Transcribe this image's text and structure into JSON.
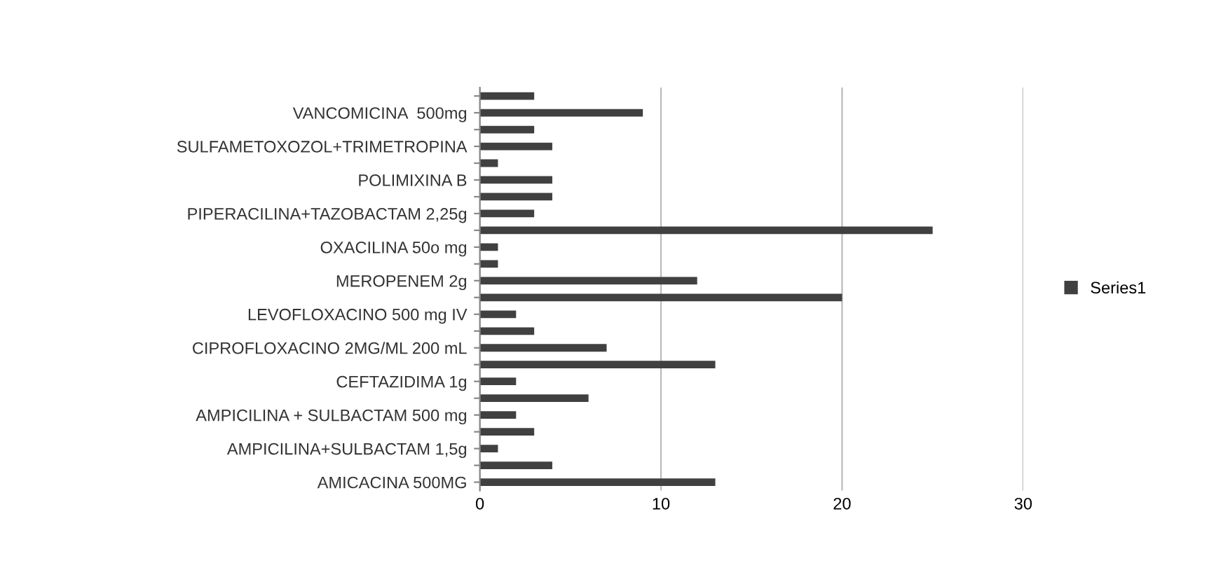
{
  "chart_data": {
    "type": "bar",
    "orientation": "horizontal",
    "categories": [
      null,
      "VANCOMICINA  500mg",
      null,
      "SULFAMETOXOZOL+TRIMETROPINA",
      null,
      "POLIMIXINA B",
      null,
      "PIPERACILINA+TAZOBACTAM 2,25g",
      null,
      "OXACILINA 50o mg",
      null,
      "MEROPENEM 2g",
      null,
      "LEVOFLOXACINO 500 mg IV",
      null,
      "CIPROFLOXACINO 2MG/ML 200 mL",
      null,
      "CEFTAZIDIMA 1g",
      null,
      "AMPICILINA + SULBACTAM 500 mg",
      null,
      "AMPICILINA+SULBACTAM 1,5g",
      null,
      "AMICACINA 500MG"
    ],
    "series": [
      {
        "name": "Series1",
        "color": "#404040",
        "values": [
          3,
          9,
          3,
          4,
          1,
          4,
          4,
          3,
          25,
          1,
          1,
          12,
          20,
          2,
          3,
          7,
          13,
          2,
          6,
          2,
          3,
          1,
          4,
          13
        ]
      }
    ],
    "xlim": [
      0,
      30
    ],
    "xticks": [
      0,
      10,
      20,
      30
    ],
    "grid": "x",
    "legend": "right"
  }
}
